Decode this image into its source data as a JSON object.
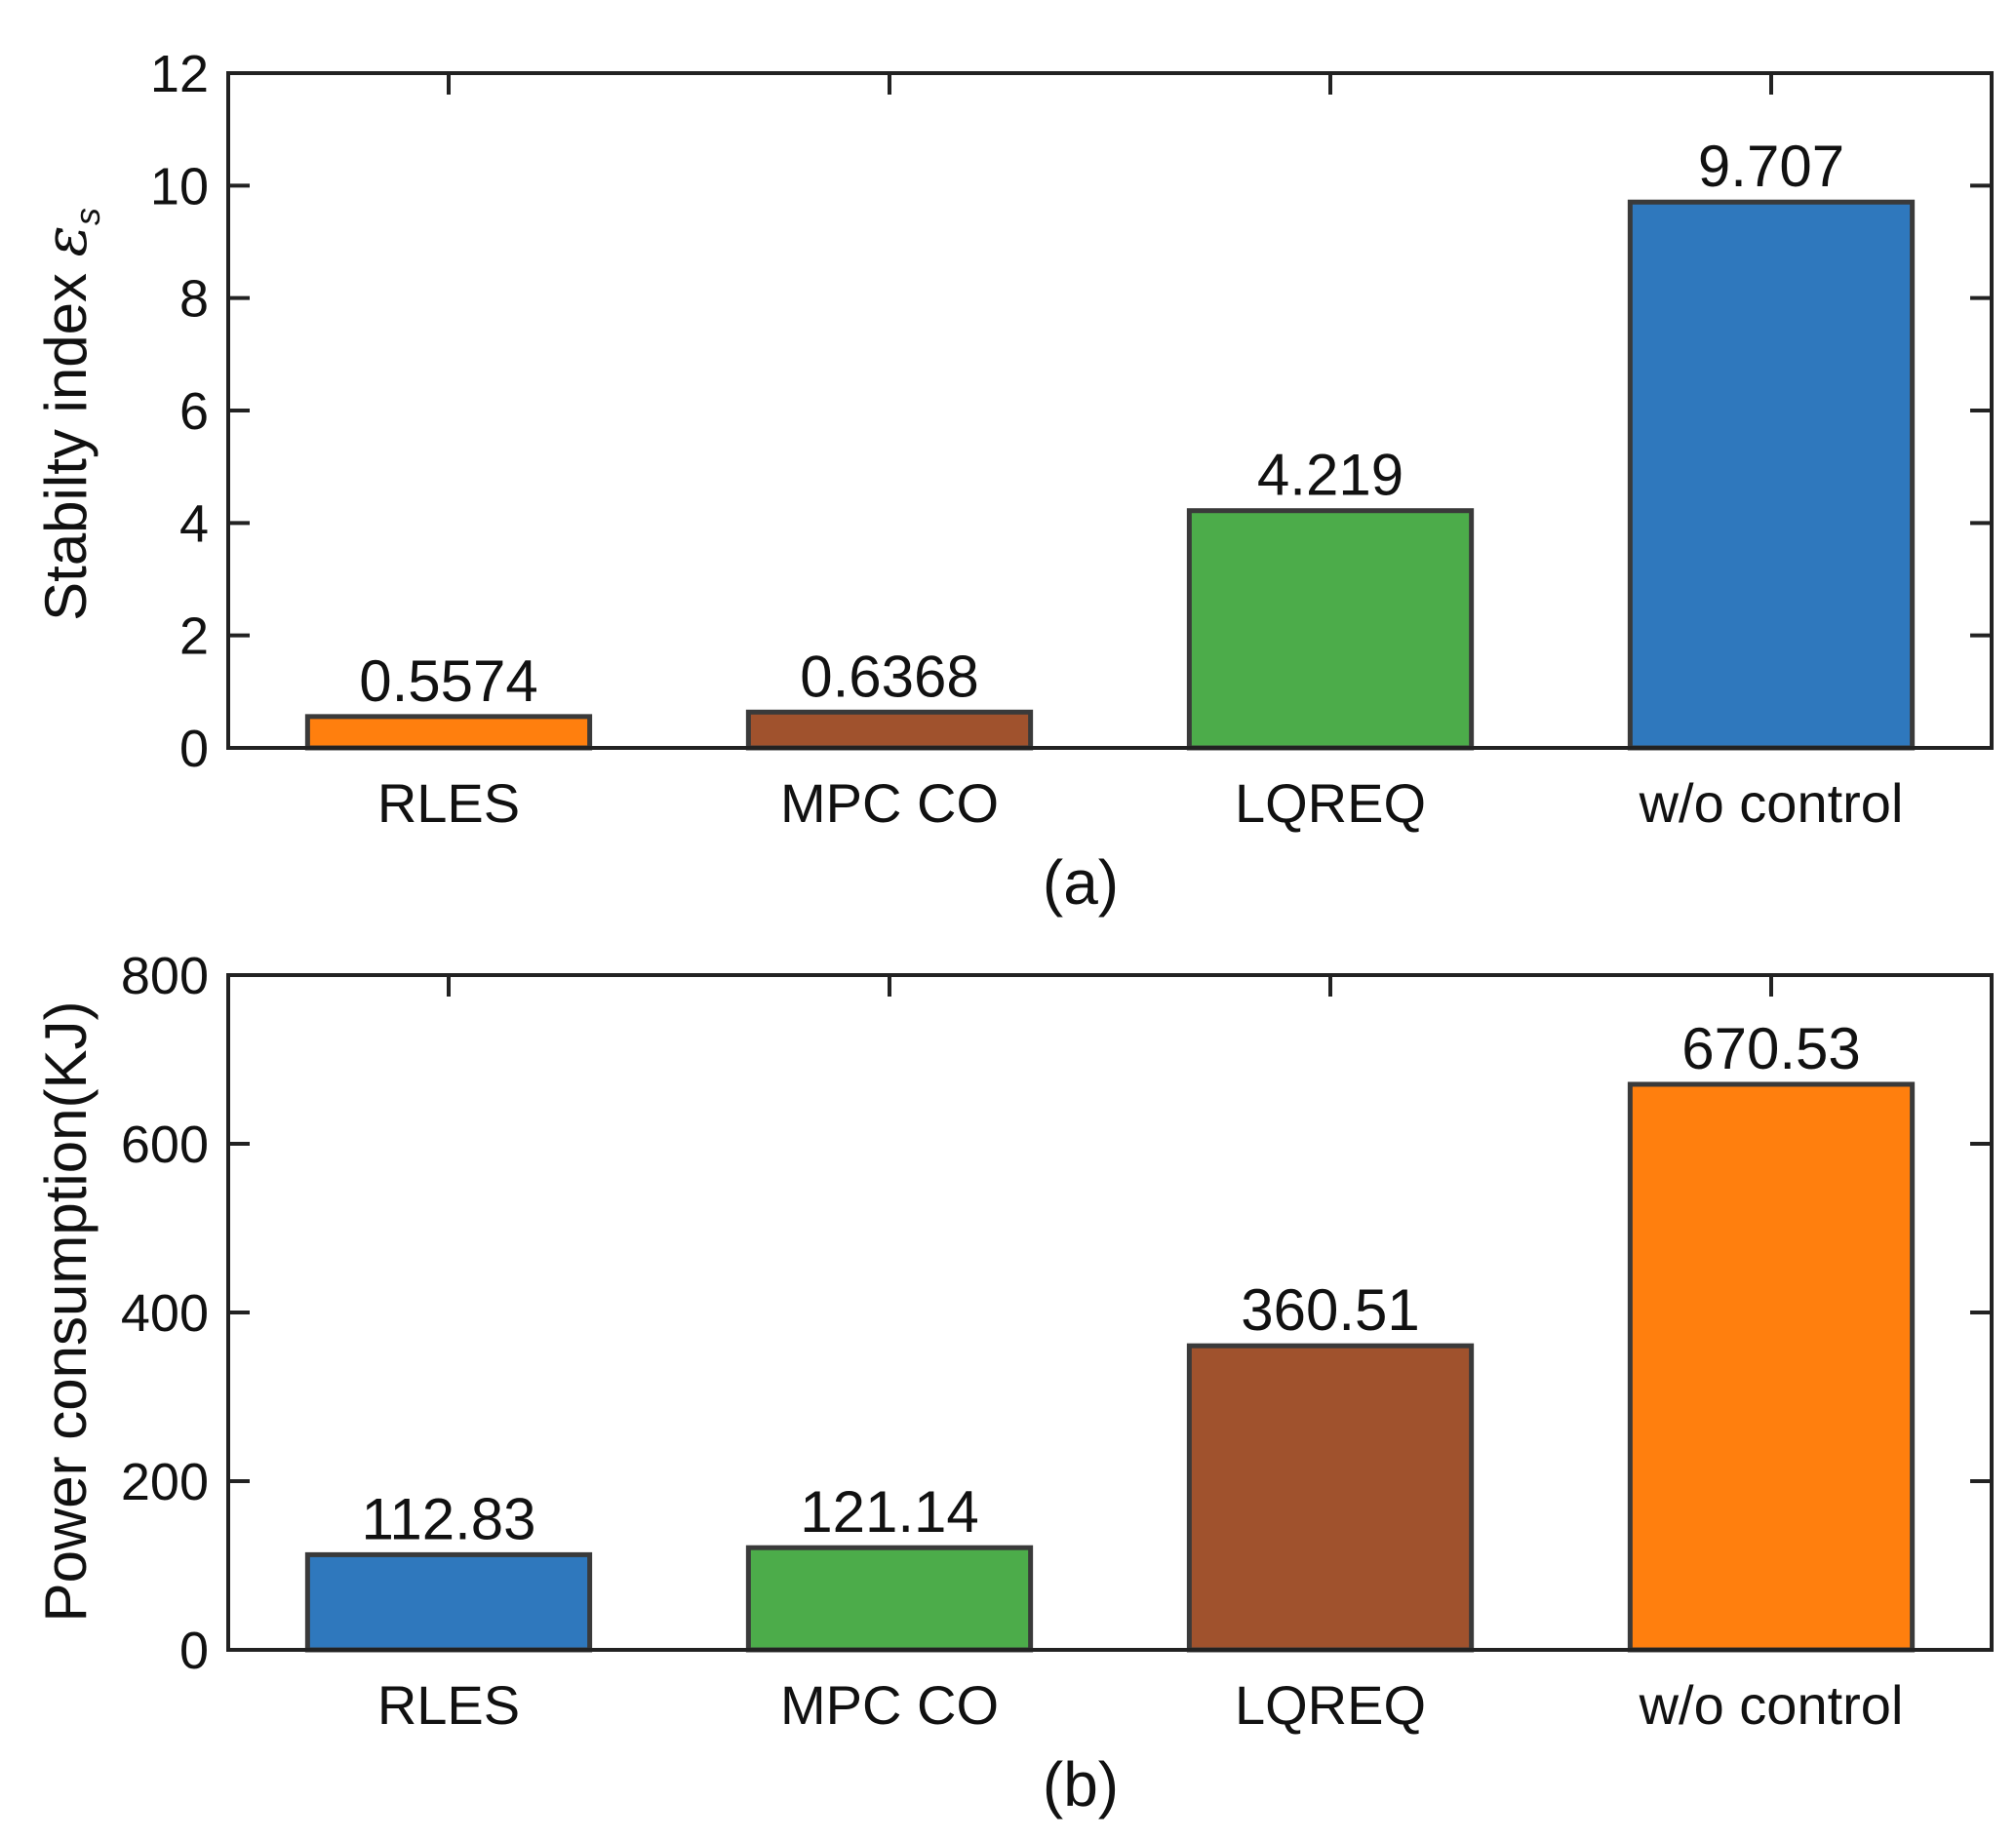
{
  "chart_data": [
    {
      "type": "bar",
      "panel": "(a)",
      "caption": "(a)",
      "ylabel": "Stabilty index",
      "ylabel_symbol": "ε",
      "ylabel_symbol_sub": "s",
      "xlabel": "",
      "ylim": [
        0,
        12
      ],
      "yticks": [
        0,
        2,
        4,
        6,
        8,
        10,
        12
      ],
      "categories": [
        "RLES",
        "MPC CO",
        "LQREQ",
        "w/o control"
      ],
      "values": [
        0.5574,
        0.6368,
        4.219,
        9.707
      ],
      "value_labels": [
        "0.5574",
        "0.6368",
        "4.219",
        "9.707"
      ],
      "colors": [
        "#ff7f0e",
        "#a0522d",
        "#4cac4a",
        "#2f78bd"
      ]
    },
    {
      "type": "bar",
      "panel": "(b)",
      "caption": "(b)",
      "ylabel": "Power consumption(KJ)",
      "xlabel": "",
      "ylim": [
        0,
        800
      ],
      "yticks": [
        0,
        200,
        400,
        600,
        800
      ],
      "categories": [
        "RLES",
        "MPC CO",
        "LQREQ",
        "w/o control"
      ],
      "values": [
        112.83,
        121.14,
        360.51,
        670.53
      ],
      "value_labels": [
        "112.83",
        "121.14",
        "360.51",
        "670.53"
      ],
      "colors": [
        "#2f78bd",
        "#4cac4a",
        "#a0522d",
        "#ff7f0e"
      ]
    }
  ]
}
